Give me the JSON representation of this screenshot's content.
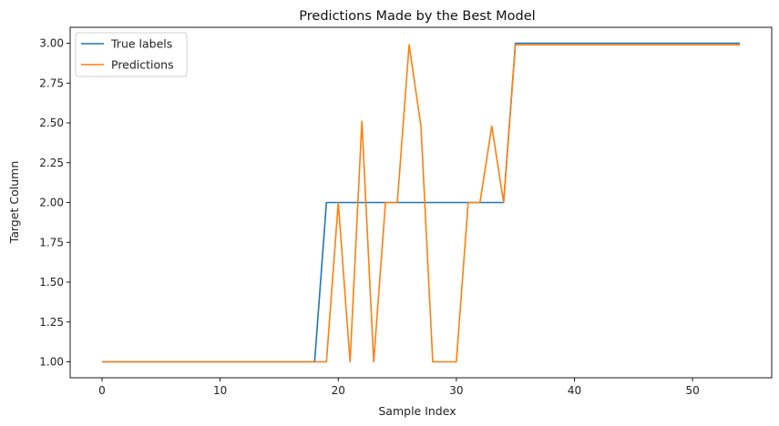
{
  "chart_data": {
    "type": "line",
    "title": "Predictions Made by the Best Model",
    "xlabel": "Sample Index",
    "ylabel": "Target Column",
    "xlim": [
      -2.7,
      56.7
    ],
    "ylim": [
      0.9,
      3.1
    ],
    "xticks": [
      0,
      10,
      20,
      30,
      40,
      50
    ],
    "yticks": [
      1.0,
      1.25,
      1.5,
      1.75,
      2.0,
      2.25,
      2.5,
      2.75,
      3.0
    ],
    "xtick_labels": [
      "0",
      "10",
      "20",
      "30",
      "40",
      "50"
    ],
    "ytick_labels": [
      "1.00",
      "1.25",
      "1.50",
      "1.75",
      "2.00",
      "2.25",
      "2.50",
      "2.75",
      "3.00"
    ],
    "grid": false,
    "legend_position": "upper-left",
    "series": [
      {
        "name": "True labels",
        "color": "#1f77b4",
        "x": [
          0,
          1,
          2,
          3,
          4,
          5,
          6,
          7,
          8,
          9,
          10,
          11,
          12,
          13,
          14,
          15,
          16,
          17,
          18,
          19,
          20,
          21,
          22,
          23,
          24,
          25,
          26,
          27,
          28,
          29,
          30,
          31,
          32,
          33,
          34,
          35,
          36,
          37,
          38,
          39,
          40,
          41,
          42,
          43,
          44,
          45,
          46,
          47,
          48,
          49,
          50,
          51,
          52,
          53,
          54
        ],
        "values": [
          1,
          1,
          1,
          1,
          1,
          1,
          1,
          1,
          1,
          1,
          1,
          1,
          1,
          1,
          1,
          1,
          1,
          1,
          1,
          2,
          2,
          2,
          2,
          2,
          2,
          2,
          2,
          2,
          2,
          2,
          2,
          2,
          2,
          2,
          2,
          3,
          3,
          3,
          3,
          3,
          3,
          3,
          3,
          3,
          3,
          3,
          3,
          3,
          3,
          3,
          3,
          3,
          3,
          3,
          3
        ]
      },
      {
        "name": "Predictions",
        "color": "#ff7f0e",
        "x": [
          0,
          1,
          2,
          3,
          4,
          5,
          6,
          7,
          8,
          9,
          10,
          11,
          12,
          13,
          14,
          15,
          16,
          17,
          18,
          19,
          20,
          21,
          22,
          23,
          24,
          25,
          26,
          27,
          28,
          29,
          30,
          31,
          32,
          33,
          34,
          35,
          36,
          37,
          38,
          39,
          40,
          41,
          42,
          43,
          44,
          45,
          46,
          47,
          48,
          49,
          50,
          51,
          52,
          53,
          54
        ],
        "values": [
          1.0,
          1.0,
          1.0,
          1.0,
          1.0,
          1.0,
          1.0,
          1.0,
          1.0,
          1.0,
          1.0,
          1.0,
          1.0,
          1.0,
          1.0,
          1.0,
          1.0,
          1.0,
          1.0,
          1.0,
          2.0,
          1.0,
          2.51,
          1.0,
          2.0,
          2.0,
          2.99,
          2.48,
          1.0,
          1.0,
          1.0,
          2.0,
          2.0,
          2.48,
          2.0,
          2.99,
          2.99,
          2.99,
          2.99,
          2.99,
          2.99,
          2.99,
          2.99,
          2.99,
          2.99,
          2.99,
          2.99,
          2.99,
          2.99,
          2.99,
          2.99,
          2.99,
          2.99,
          2.99,
          2.99
        ]
      }
    ]
  }
}
